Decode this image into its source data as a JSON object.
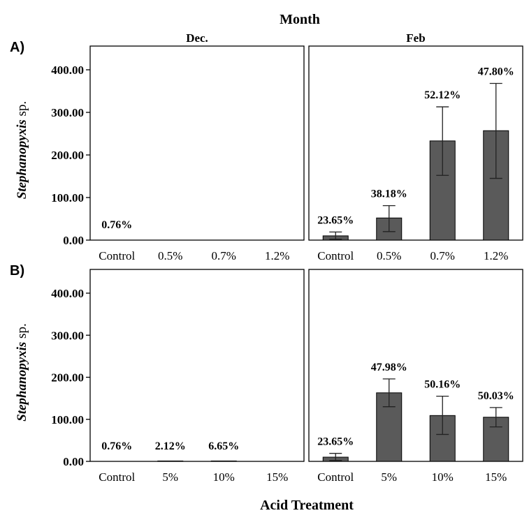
{
  "figure": {
    "title": "Month",
    "xlabel": "Acid Treatment",
    "ylabel_species": "Stephanopyxis",
    "ylabel_suffix": " sp.",
    "columns": [
      "Dec.",
      "Feb"
    ],
    "bar_color": "#5a5a5a"
  },
  "chart_data": [
    {
      "type": "bar",
      "panel_label": "A)",
      "month": "Dec.",
      "categories": [
        "Control",
        "0.5%",
        "0.7%",
        "1.2%"
      ],
      "values": [
        0,
        0,
        0,
        0
      ],
      "error": [
        null,
        null,
        null,
        null
      ],
      "data_labels": [
        "0.76%",
        "",
        "",
        ""
      ],
      "ylim": [
        0,
        400
      ],
      "yticks": [
        "0.00",
        "100.00",
        "200.00",
        "300.00",
        "400.00"
      ]
    },
    {
      "type": "bar",
      "panel_label": "",
      "month": "Feb",
      "categories": [
        "Control",
        "0.5%",
        "0.7%",
        "1.2%"
      ],
      "values": [
        10,
        52,
        233,
        257
      ],
      "error": [
        [
          2,
          19
        ],
        [
          20,
          81
        ],
        [
          152,
          313
        ],
        [
          145,
          368
        ]
      ],
      "data_labels": [
        "23.65%",
        "38.18%",
        "52.12%",
        "47.80%"
      ],
      "ylim": [
        0,
        400
      ],
      "yticks": [
        "0.00",
        "100.00",
        "200.00",
        "300.00",
        "400.00"
      ]
    },
    {
      "type": "bar",
      "panel_label": "B)",
      "month": "Dec.",
      "categories": [
        "Control",
        "5%",
        "10%",
        "15%"
      ],
      "values": [
        0,
        1,
        1,
        0
      ],
      "error": [
        null,
        null,
        null,
        null
      ],
      "data_labels": [
        "0.76%",
        "2.12%",
        "6.65%",
        ""
      ],
      "ylim": [
        0,
        400
      ],
      "yticks": [
        "0.00",
        "100.00",
        "200.00",
        "300.00",
        "400.00"
      ]
    },
    {
      "type": "bar",
      "panel_label": "",
      "month": "Feb",
      "categories": [
        "Control",
        "5%",
        "10%",
        "15%"
      ],
      "values": [
        10,
        163,
        109,
        105
      ],
      "error": [
        [
          2,
          19
        ],
        [
          130,
          196
        ],
        [
          64,
          155
        ],
        [
          82,
          128
        ]
      ],
      "data_labels": [
        "23.65%",
        "47.98%",
        "50.16%",
        "50.03%"
      ],
      "ylim": [
        0,
        400
      ],
      "yticks": [
        "0.00",
        "100.00",
        "200.00",
        "300.00",
        "400.00"
      ]
    }
  ]
}
